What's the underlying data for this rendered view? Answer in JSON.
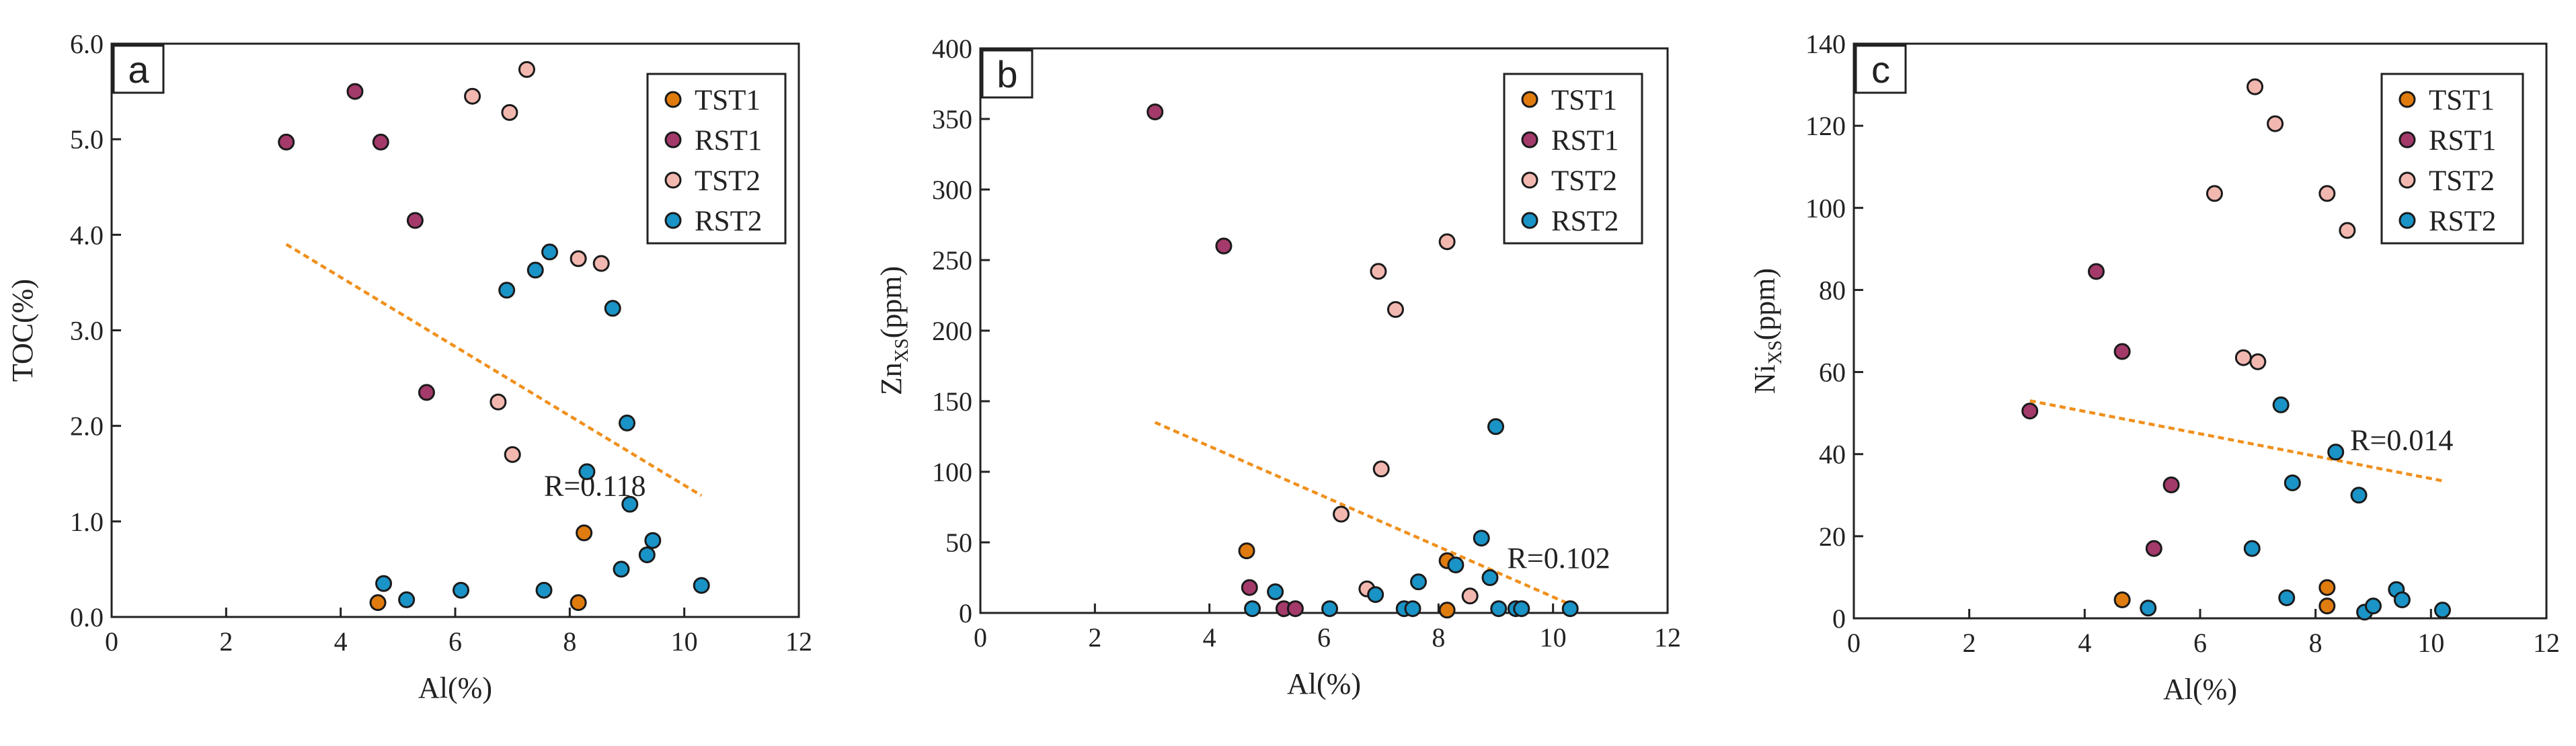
{
  "colors": {
    "TST1": "#e07b0e",
    "RST1": "#a33a6a",
    "TST2": "#f2b8b0",
    "RST2": "#1a93c6",
    "trend": "#f0901c"
  },
  "chart_data": [
    {
      "type": "scatter",
      "panel": "a",
      "xlabel": "Al(%)",
      "ylabel": "TOC(%)",
      "xlim": [
        0,
        12
      ],
      "ylim": [
        0,
        6
      ],
      "xticks": [
        0,
        2,
        4,
        6,
        8,
        10,
        12
      ],
      "yticks": [
        0,
        1,
        2,
        3,
        4,
        5,
        6
      ],
      "ytick_labels": [
        "0.0",
        "1.0",
        "2.0",
        "3.0",
        "4.0",
        "5.0",
        "6.0"
      ],
      "legend": [
        "TST1",
        "RST1",
        "TST2",
        "RST2"
      ],
      "series": [
        {
          "name": "TST1",
          "points": [
            [
              4.65,
              0.15
            ],
            [
              8.15,
              0.15
            ],
            [
              8.25,
              0.88
            ]
          ]
        },
        {
          "name": "RST1",
          "points": [
            [
              3.05,
              4.97
            ],
            [
              4.25,
              5.5
            ],
            [
              4.7,
              4.97
            ],
            [
              5.3,
              4.15
            ],
            [
              5.5,
              2.35
            ]
          ]
        },
        {
          "name": "TST2",
          "points": [
            [
              6.3,
              5.45
            ],
            [
              6.75,
              2.25
            ],
            [
              6.95,
              5.28
            ],
            [
              7.0,
              1.7
            ],
            [
              7.25,
              5.73
            ],
            [
              8.15,
              3.75
            ],
            [
              8.55,
              3.7
            ]
          ]
        },
        {
          "name": "RST2",
          "points": [
            [
              4.75,
              0.35
            ],
            [
              5.15,
              0.18
            ],
            [
              6.1,
              0.28
            ],
            [
              6.9,
              3.42
            ],
            [
              7.4,
              3.63
            ],
            [
              7.55,
              0.28
            ],
            [
              7.65,
              3.82
            ],
            [
              8.3,
              1.52
            ],
            [
              8.75,
              3.23
            ],
            [
              8.9,
              0.5
            ],
            [
              9.0,
              2.03
            ],
            [
              9.05,
              1.18
            ],
            [
              9.35,
              0.65
            ],
            [
              9.45,
              0.8
            ],
            [
              10.3,
              0.33
            ]
          ]
        }
      ],
      "trendline": [
        [
          3.05,
          3.9
        ],
        [
          10.3,
          1.27
        ]
      ],
      "annotation": "R=0.118",
      "annotation_pos": [
        7.55,
        1.27
      ]
    },
    {
      "type": "scatter",
      "panel": "b",
      "xlabel": "Al(%)",
      "ylabel": "Zn",
      "ylabel_sub": "XS",
      "ylabel_suffix": "(ppm)",
      "xlim": [
        0,
        12
      ],
      "ylim": [
        0,
        400
      ],
      "xticks": [
        0,
        2,
        4,
        6,
        8,
        10,
        12
      ],
      "yticks": [
        0,
        50,
        100,
        150,
        200,
        250,
        300,
        350,
        400
      ],
      "ytick_labels": [
        "0",
        "50",
        "100",
        "150",
        "200",
        "250",
        "300",
        "350",
        "400"
      ],
      "legend": [
        "TST1",
        "RST1",
        "TST2",
        "RST2"
      ],
      "series": [
        {
          "name": "TST1",
          "points": [
            [
              4.65,
              44
            ],
            [
              8.15,
              2
            ],
            [
              8.15,
              37
            ]
          ]
        },
        {
          "name": "RST1",
          "points": [
            [
              3.05,
              355
            ],
            [
              4.25,
              260
            ],
            [
              4.7,
              18
            ],
            [
              5.3,
              3
            ],
            [
              5.5,
              3
            ]
          ]
        },
        {
          "name": "TST2",
          "points": [
            [
              6.3,
              70
            ],
            [
              6.75,
              17
            ],
            [
              6.95,
              242
            ],
            [
              7.0,
              102
            ],
            [
              7.25,
              215
            ],
            [
              8.15,
              263
            ],
            [
              8.55,
              12
            ]
          ]
        },
        {
          "name": "RST2",
          "points": [
            [
              4.75,
              3
            ],
            [
              5.15,
              15
            ],
            [
              6.1,
              3
            ],
            [
              6.9,
              13
            ],
            [
              7.4,
              3
            ],
            [
              7.55,
              3
            ],
            [
              7.65,
              22
            ],
            [
              8.3,
              34
            ],
            [
              8.75,
              53
            ],
            [
              8.9,
              25
            ],
            [
              9.0,
              132
            ],
            [
              9.05,
              3
            ],
            [
              9.35,
              3
            ],
            [
              9.45,
              3
            ],
            [
              10.3,
              3
            ]
          ]
        }
      ],
      "trendline": [
        [
          3.05,
          135
        ],
        [
          10.3,
          6
        ]
      ],
      "annotation": "R=0.102",
      "annotation_pos": [
        9.2,
        32
      ]
    },
    {
      "type": "scatter",
      "panel": "c",
      "xlabel": "Al(%)",
      "ylabel": "Ni",
      "ylabel_sub": "XS",
      "ylabel_suffix": "(ppm)",
      "xlim": [
        0,
        12
      ],
      "ylim": [
        0,
        140
      ],
      "xticks": [
        0,
        2,
        4,
        6,
        8,
        10,
        12
      ],
      "yticks": [
        0,
        20,
        40,
        60,
        80,
        100,
        120,
        140
      ],
      "ytick_labels": [
        "0",
        "20",
        "40",
        "60",
        "80",
        "100",
        "120",
        "140"
      ],
      "legend": [
        "TST1",
        "RST1",
        "TST2",
        "RST2"
      ],
      "series": [
        {
          "name": "TST1",
          "points": [
            [
              4.65,
              4.5
            ],
            [
              8.2,
              3
            ],
            [
              8.2,
              7.5
            ]
          ]
        },
        {
          "name": "RST1",
          "points": [
            [
              3.05,
              50.5
            ],
            [
              4.2,
              84.5
            ],
            [
              4.65,
              65
            ],
            [
              5.2,
              17
            ],
            [
              5.5,
              32.5
            ]
          ]
        },
        {
          "name": "TST2",
          "points": [
            [
              6.25,
              103.5
            ],
            [
              6.75,
              63.5
            ],
            [
              6.95,
              129.5
            ],
            [
              7.0,
              62.5
            ],
            [
              7.3,
              120.5
            ],
            [
              8.2,
              103.5
            ],
            [
              8.55,
              94.5
            ]
          ]
        },
        {
          "name": "RST2",
          "points": [
            [
              5.1,
              2.5
            ],
            [
              6.9,
              17
            ],
            [
              7.4,
              52
            ],
            [
              7.5,
              5
            ],
            [
              7.6,
              33
            ],
            [
              8.35,
              40.5
            ],
            [
              8.75,
              30
            ],
            [
              8.85,
              1.5
            ],
            [
              9.0,
              3
            ],
            [
              9.4,
              7
            ],
            [
              9.5,
              4.5
            ],
            [
              10.2,
              2
            ]
          ]
        }
      ],
      "trendline": [
        [
          3.05,
          53
        ],
        [
          10.2,
          33.5
        ]
      ],
      "annotation": "R=0.014",
      "annotation_pos": [
        8.6,
        41
      ]
    }
  ]
}
